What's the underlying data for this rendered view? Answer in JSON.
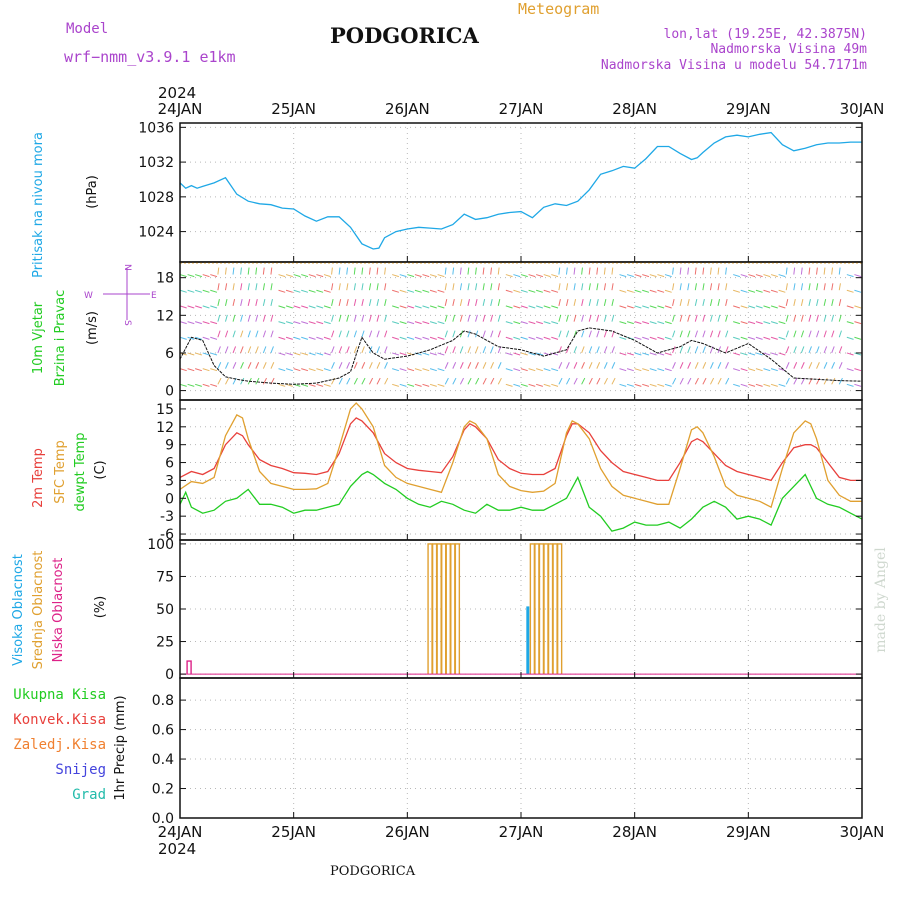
{
  "header": {
    "model_label": "Model",
    "model_name": "wrf−nmm_v3.9.1  e1km",
    "station": "PODGORICA",
    "meteogram": "Meteogram",
    "lonlat": "lon,lat (19.25E, 42.3875N)",
    "elevation": "Nadmorska Visina 49m",
    "model_elevation": "Nadmorska Visina u modelu 54.7171m",
    "footer_station": "PODGORICA",
    "credit": "made by Angel"
  },
  "x_axis": {
    "year": "2024",
    "ticks": [
      "24JAN",
      "25JAN",
      "26JAN",
      "27JAN",
      "28JAN",
      "29JAN",
      "30JAN"
    ]
  },
  "colors": {
    "pressure": "#1fa8e6",
    "temp2m": "#e8403c",
    "sfc_temp": "#e0a030",
    "dewpt": "#22cc22",
    "cloud_high": "#1fa8e6",
    "cloud_mid": "#e0a030",
    "cloud_low": "#dd2288",
    "precip_total": "#22cc22",
    "precip_conv": "#e8403c",
    "precip_grid": "#f08030",
    "snow": "#4444dd",
    "hail": "#22bbaa",
    "wind_label": "#22cc22",
    "purple": "#aa44cc"
  },
  "chart_data": [
    {
      "type": "line",
      "panel": "pressure",
      "ylabel_main": "Pritisak na nivou mora",
      "ylabel_unit": "(hPa)",
      "ylim": [
        1020.5,
        1036.5
      ],
      "yticks": [
        1024,
        1028,
        1032,
        1036
      ],
      "xlim": [
        0,
        6
      ],
      "grid": true,
      "series": [
        {
          "x": [
            0,
            0.05,
            0.1,
            0.15,
            0.2,
            0.3,
            0.4,
            0.5,
            0.6,
            0.7,
            0.8,
            0.9,
            1.0,
            1.1,
            1.2,
            1.3,
            1.4,
            1.5,
            1.6,
            1.7,
            1.75,
            1.8,
            1.9,
            2.0,
            2.1,
            2.2,
            2.3,
            2.4,
            2.5,
            2.6,
            2.7,
            2.8,
            2.9,
            3.0,
            3.1,
            3.2,
            3.3,
            3.4,
            3.5,
            3.6,
            3.7,
            3.8,
            3.9,
            4.0,
            4.1,
            4.2,
            4.3,
            4.4,
            4.5,
            4.55,
            4.6,
            4.7,
            4.8,
            4.9,
            5.0,
            5.1,
            5.2,
            5.3,
            5.4,
            5.5,
            5.6,
            5.7,
            5.8,
            5.9,
            6.0
          ],
          "y": [
            1029.6,
            1029.0,
            1029.3,
            1029.0,
            1029.2,
            1029.6,
            1030.2,
            1028.3,
            1027.5,
            1027.2,
            1027.1,
            1026.7,
            1026.6,
            1025.8,
            1025.2,
            1025.7,
            1025.7,
            1024.5,
            1022.6,
            1022.0,
            1022.1,
            1023.3,
            1024.0,
            1024.3,
            1024.5,
            1024.4,
            1024.3,
            1024.8,
            1026.0,
            1025.4,
            1025.6,
            1026.0,
            1026.2,
            1026.3,
            1025.6,
            1026.8,
            1027.2,
            1027.0,
            1027.5,
            1028.8,
            1030.6,
            1031.0,
            1031.5,
            1031.3,
            1032.4,
            1033.8,
            1033.8,
            1033.0,
            1032.3,
            1032.5,
            1033.1,
            1034.2,
            1034.9,
            1035.1,
            1034.9,
            1035.2,
            1035.4,
            1034.0,
            1033.3,
            1033.6,
            1034.0,
            1034.2,
            1034.2,
            1034.3,
            1034.3
          ]
        }
      ]
    },
    {
      "type": "line",
      "panel": "wind",
      "ylabel_main1": "10m Vjetar",
      "ylabel_main2": "Brzina i Pravac",
      "ylabel_unit": "(m/s)",
      "compass": {
        "n": "N",
        "e": "E",
        "s": "S",
        "w": "W"
      },
      "ylim": [
        -1.5,
        20.5
      ],
      "yticks": [
        0,
        6,
        12,
        18
      ],
      "xlim": [
        0,
        6
      ],
      "grid": true,
      "series": [
        {
          "name": "speed",
          "x": [
            0,
            0.1,
            0.2,
            0.3,
            0.4,
            0.5,
            0.6,
            0.8,
            1.0,
            1.2,
            1.4,
            1.5,
            1.6,
            1.7,
            1.8,
            2.0,
            2.2,
            2.4,
            2.5,
            2.6,
            2.7,
            2.8,
            3.0,
            3.2,
            3.4,
            3.5,
            3.6,
            3.8,
            4.0,
            4.2,
            4.4,
            4.5,
            4.6,
            4.8,
            5.0,
            5.2,
            5.4,
            5.6,
            5.8,
            6.0
          ],
          "y": [
            5,
            8.5,
            8,
            4,
            2.2,
            1.8,
            1.5,
            1.2,
            1.0,
            1.2,
            2,
            3,
            8.5,
            6,
            5,
            5.5,
            6.5,
            8,
            9.5,
            9,
            8,
            7,
            6.5,
            5.5,
            6.5,
            9.5,
            10,
            9.5,
            8,
            6,
            7,
            8,
            7.5,
            6,
            7.5,
            5,
            2,
            1.8,
            1.6,
            1.5
          ]
        }
      ]
    },
    {
      "type": "line",
      "panel": "temperature",
      "ylabel_main1": "2m Temp",
      "ylabel_main2": "SFC Temp",
      "ylabel_main3": "dewpt Temp",
      "ylabel_unit": "(C)",
      "ylim": [
        -7,
        16.5
      ],
      "yticks": [
        -6,
        -3,
        0,
        3,
        6,
        9,
        12,
        15
      ],
      "xlim": [
        0,
        6
      ],
      "grid": true,
      "series": [
        {
          "name": "2m Temp",
          "x": [
            0,
            0.1,
            0.2,
            0.3,
            0.4,
            0.5,
            0.55,
            0.6,
            0.7,
            0.8,
            0.9,
            1.0,
            1.1,
            1.2,
            1.3,
            1.4,
            1.5,
            1.55,
            1.6,
            1.7,
            1.8,
            1.9,
            2.0,
            2.1,
            2.2,
            2.3,
            2.4,
            2.5,
            2.55,
            2.6,
            2.7,
            2.8,
            2.9,
            3.0,
            3.1,
            3.2,
            3.3,
            3.4,
            3.45,
            3.5,
            3.6,
            3.7,
            3.8,
            3.9,
            4.0,
            4.1,
            4.2,
            4.3,
            4.4,
            4.5,
            4.55,
            4.6,
            4.7,
            4.8,
            4.9,
            5.0,
            5.1,
            5.2,
            5.3,
            5.4,
            5.5,
            5.55,
            5.6,
            5.7,
            5.8,
            5.9,
            6.0
          ],
          "y": [
            3.5,
            4.5,
            4.0,
            5.0,
            9.0,
            11.0,
            10.5,
            9.0,
            6.5,
            5.5,
            5.0,
            4.3,
            4.2,
            4.0,
            4.5,
            7.5,
            12.5,
            13.5,
            13.0,
            11.0,
            7.5,
            6.0,
            5.0,
            4.7,
            4.5,
            4.3,
            7.0,
            11.5,
            12.5,
            12.0,
            10.0,
            6.5,
            5.0,
            4.2,
            4.0,
            4.0,
            5.0,
            10.5,
            12.5,
            12.5,
            11.0,
            8.0,
            6.0,
            4.5,
            4.0,
            3.5,
            3.0,
            3.0,
            6.0,
            9.5,
            10.0,
            9.5,
            7.5,
            5.5,
            4.5,
            4.0,
            3.5,
            3.0,
            6.0,
            8.5,
            9.0,
            9.0,
            8.5,
            6.0,
            3.5,
            3.0,
            3.0
          ]
        },
        {
          "name": "SFC Temp",
          "x": [
            0,
            0.1,
            0.2,
            0.3,
            0.4,
            0.5,
            0.55,
            0.6,
            0.7,
            0.8,
            0.9,
            1.0,
            1.1,
            1.2,
            1.3,
            1.4,
            1.5,
            1.55,
            1.6,
            1.7,
            1.8,
            1.9,
            2.0,
            2.1,
            2.2,
            2.3,
            2.4,
            2.5,
            2.55,
            2.6,
            2.7,
            2.8,
            2.9,
            3.0,
            3.1,
            3.2,
            3.3,
            3.4,
            3.45,
            3.5,
            3.6,
            3.7,
            3.8,
            3.9,
            4.0,
            4.1,
            4.2,
            4.3,
            4.4,
            4.5,
            4.55,
            4.6,
            4.7,
            4.8,
            4.9,
            5.0,
            5.1,
            5.2,
            5.3,
            5.4,
            5.5,
            5.55,
            5.6,
            5.7,
            5.8,
            5.9,
            6.0
          ],
          "y": [
            1.5,
            2.8,
            2.5,
            3.5,
            10.5,
            14.0,
            13.5,
            10.0,
            4.5,
            2.5,
            2.0,
            1.5,
            1.5,
            1.6,
            2.5,
            8.5,
            15.0,
            16.0,
            15.0,
            12.0,
            5.5,
            3.5,
            2.5,
            2.0,
            1.5,
            1.0,
            6.0,
            12.0,
            13.0,
            12.5,
            10.0,
            4.0,
            2.0,
            1.3,
            1.0,
            1.2,
            2.5,
            11.0,
            13.0,
            12.5,
            10.0,
            5.0,
            2.0,
            0.5,
            0.0,
            -0.5,
            -1.0,
            -1.0,
            5.0,
            11.5,
            12.0,
            11.0,
            7.0,
            2.0,
            0.5,
            0.0,
            -0.5,
            -1.5,
            5.0,
            11.0,
            13.0,
            12.5,
            10.0,
            3.0,
            0.5,
            -0.5,
            -0.5
          ]
        },
        {
          "name": "dewpt Temp",
          "x": [
            0,
            0.05,
            0.1,
            0.2,
            0.3,
            0.4,
            0.5,
            0.6,
            0.7,
            0.8,
            0.9,
            1.0,
            1.1,
            1.2,
            1.3,
            1.4,
            1.5,
            1.6,
            1.65,
            1.7,
            1.8,
            1.9,
            2.0,
            2.1,
            2.2,
            2.3,
            2.4,
            2.5,
            2.6,
            2.7,
            2.8,
            2.9,
            3.0,
            3.1,
            3.2,
            3.3,
            3.4,
            3.5,
            3.6,
            3.7,
            3.8,
            3.9,
            4.0,
            4.1,
            4.2,
            4.3,
            4.4,
            4.5,
            4.6,
            4.7,
            4.8,
            4.9,
            5.0,
            5.1,
            5.2,
            5.3,
            5.4,
            5.5,
            5.6,
            5.7,
            5.8,
            5.9,
            6.0
          ],
          "y": [
            -1.0,
            1.0,
            -1.5,
            -2.5,
            -2.0,
            -0.5,
            0.0,
            1.5,
            -1.0,
            -1.0,
            -1.5,
            -2.5,
            -2.0,
            -2.0,
            -1.5,
            -1.0,
            2.0,
            4.0,
            4.5,
            4.0,
            2.5,
            1.5,
            0.0,
            -1.0,
            -1.5,
            -0.5,
            -1.0,
            -2.0,
            -2.5,
            -1.0,
            -2.0,
            -2.0,
            -1.5,
            -2.0,
            -2.0,
            -1.0,
            0.0,
            3.5,
            -1.5,
            -3.0,
            -5.5,
            -5.0,
            -4.0,
            -4.5,
            -4.5,
            -4.0,
            -5.0,
            -3.5,
            -1.5,
            -0.5,
            -1.5,
            -3.5,
            -3.0,
            -3.5,
            -4.5,
            0.0,
            2.0,
            4.0,
            0.0,
            -1.0,
            -1.5,
            -2.5,
            -3.5
          ]
        }
      ]
    },
    {
      "type": "bar",
      "panel": "clouds",
      "ylabel_main1": "Visoka Oblacnost",
      "ylabel_main2": "Srednja Oblacnost",
      "ylabel_main3": "Niska Oblacnost",
      "ylabel_unit": "(%)",
      "ylim": [
        -3,
        103
      ],
      "yticks": [
        0,
        25,
        50,
        75,
        100
      ],
      "xlim": [
        0,
        6
      ],
      "grid": true,
      "series": [
        {
          "name": "Visoka Oblacnost",
          "x": [
            3.06
          ],
          "values": [
            52
          ]
        },
        {
          "name": "Srednja Oblacnost",
          "x": [
            2.2,
            2.24,
            2.28,
            2.32,
            2.36,
            2.4,
            2.44,
            3.1,
            3.14,
            3.18,
            3.22,
            3.26,
            3.3,
            3.34
          ],
          "values": [
            100,
            100,
            100,
            100,
            100,
            100,
            100,
            100,
            100,
            100,
            100,
            100,
            100,
            100
          ]
        },
        {
          "name": "Niska Oblacnost",
          "x": [
            0.08
          ],
          "values": [
            10
          ]
        }
      ]
    },
    {
      "type": "bar",
      "panel": "precipitation",
      "ylabel_unit": "1hr Precip (mm)",
      "legend": [
        "Ukupna Kisa",
        "Konvek.Kisa",
        "Zaledj.Kisa",
        "Snijeg",
        "Grad"
      ],
      "ylim": [
        0,
        0.95
      ],
      "yticks": [
        0.0,
        0.2,
        0.4,
        0.6,
        0.8
      ],
      "xlim": [
        0,
        6
      ],
      "grid": true,
      "series": [
        {
          "name": "Ukupna Kisa",
          "x": [],
          "values": []
        }
      ]
    }
  ]
}
